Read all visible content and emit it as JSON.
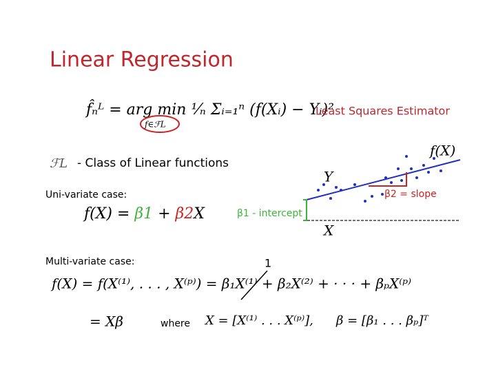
{
  "title": "Linear Regression",
  "estimator": {
    "formula": "f̂ₙᴸ = arg min ¹⁄ₙ Σᵢ₌₁ⁿ (f(Xᵢ) − Yᵢ)²",
    "constraint": "f∈ℱL",
    "label": "Least Squares Estimator"
  },
  "class": {
    "symbol": "ℱL",
    "text": "- Class of Linear functions"
  },
  "univariate": {
    "heading": "Uni-variate case:",
    "lhs": "f(X) = ",
    "beta1": "β1",
    "plus": " + ",
    "beta2": "β2",
    "x": "X"
  },
  "plot": {
    "y_label": "Y",
    "x_label": "X",
    "f_label": "f(X)",
    "intercept_label": "β1 - intercept",
    "slope_label": "β2 = slope"
  },
  "multivariate": {
    "heading": "Multi-variate case:",
    "formula": "f(X) = f(X⁽¹⁾, . . . , X⁽ᵖ⁾) = β₁X⁽¹⁾ + β₂X⁽²⁾ + · · · + βₚX⁽ᵖ⁾",
    "annotation": "1",
    "line2": "= Xβ",
    "where": "where",
    "x_def": "X = [X⁽¹⁾ . . . X⁽ᵖ⁾],",
    "beta_def": "β = [β₁ . . . βₚ]ᵀ"
  }
}
